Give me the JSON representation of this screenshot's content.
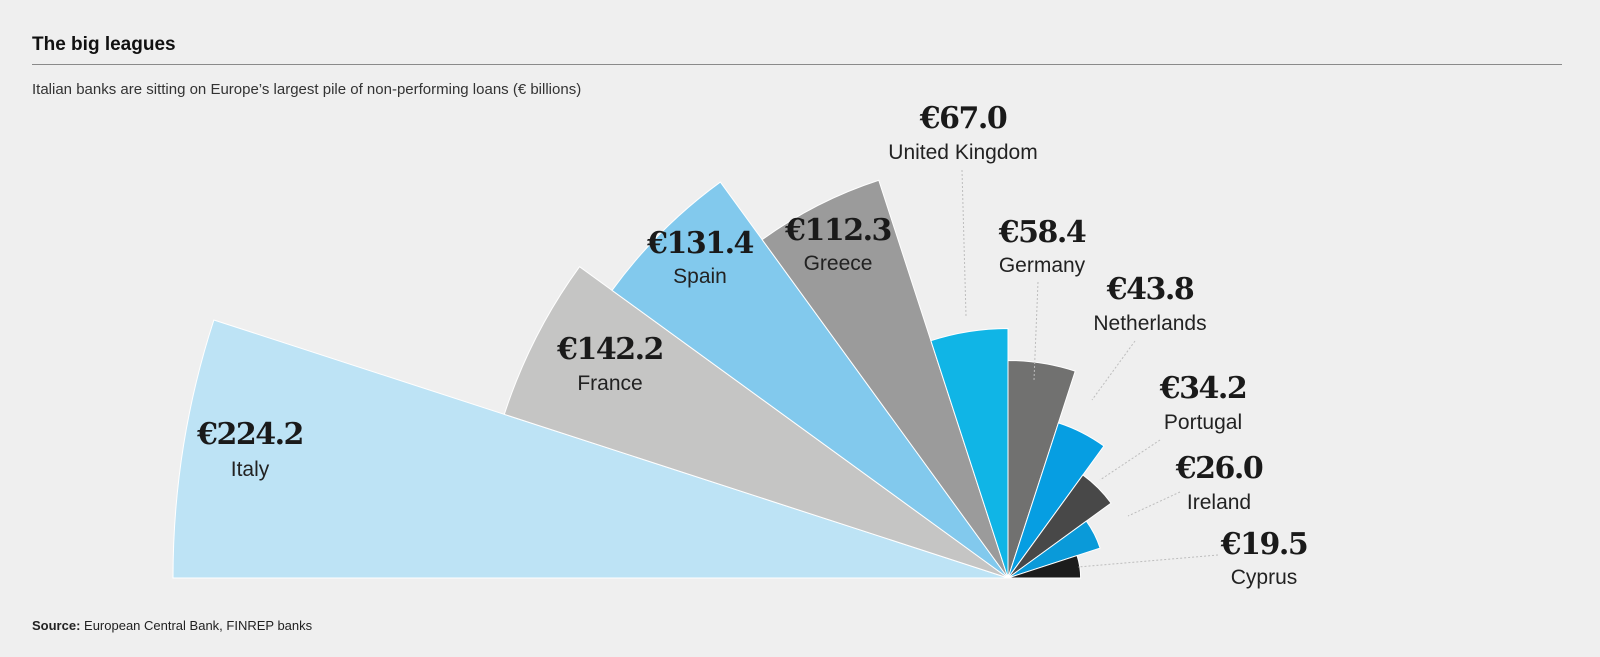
{
  "title": "The big leagues",
  "subtitle": "Italian banks are sitting on Europe’s largest pile of non-performing loans (€ billions)",
  "source_label": "Source:",
  "source_text": "European Central Bank, FINREP banks",
  "chart_data": {
    "type": "pie",
    "title": "The big leagues",
    "subtitle": "Italian banks are sitting on Europe’s largest pile of non-performing loans (€ billions)",
    "variant": "half-rose (polar area, upper semicircle, equal-angle wedges, radius proportional to value)",
    "unit": "€ billions",
    "categories": [
      "Italy",
      "France",
      "Spain",
      "Greece",
      "United Kingdom",
      "Germany",
      "Netherlands",
      "Portugal",
      "Ireland",
      "Cyprus"
    ],
    "values": [
      224.2,
      142.2,
      131.4,
      112.3,
      67.0,
      58.4,
      43.8,
      34.2,
      26.0,
      19.5
    ],
    "value_labels": [
      "€224.2",
      "€142.2",
      "€131.4",
      "€112.3",
      "€67.0",
      "€58.4",
      "€43.8",
      "€34.2",
      "€26.0",
      "€19.5"
    ],
    "colors": [
      "#bde3f5",
      "#c5c5c4",
      "#82c9ed",
      "#9b9b9b",
      "#10b5e6",
      "#717170",
      "#069ee2",
      "#484848",
      "#0a9ad9",
      "#1c1c1c"
    ],
    "legend": "none (labels placed next to wedges)"
  }
}
